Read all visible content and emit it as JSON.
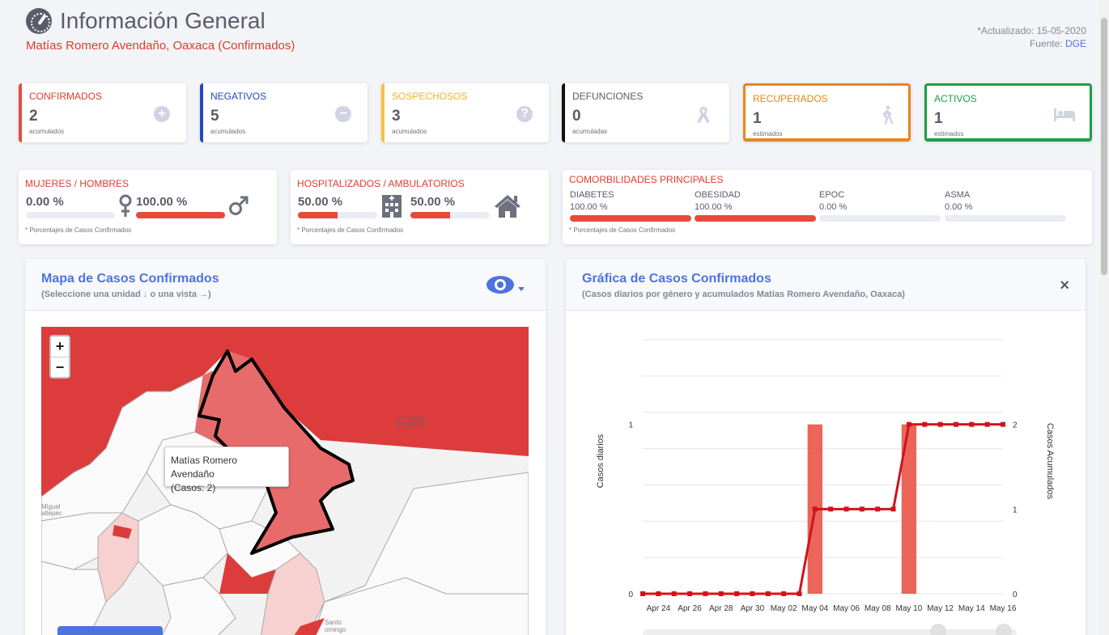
{
  "header": {
    "title": "Información General",
    "subtitle": "Matías Romero Avendaño, Oaxaca (Confirmados)",
    "updated": "*Actualizado: 15-05-2020",
    "source_label": "Fuente:",
    "source_link": "DGE"
  },
  "stats": [
    {
      "label": "CONFIRMADOS",
      "value": "2",
      "note": "acumulados",
      "color": "#e74a3b",
      "icon": "plus-circle-icon"
    },
    {
      "label": "NEGATIVOS",
      "value": "5",
      "note": "acumulados",
      "color": "#224abe",
      "icon": "minus-circle-icon"
    },
    {
      "label": "SOSPECHOSOS",
      "value": "3",
      "note": "acumulados",
      "color": "#f6c23e",
      "icon": "question-circle-icon"
    },
    {
      "label": "DEFUNCIONES",
      "value": "0",
      "note": "acumuladas",
      "color": "#111111",
      "icon": "ribbon-icon"
    },
    {
      "label": "RECUPERADOS",
      "value": "1",
      "note": "estimados",
      "color": "#e8851a",
      "icon": "walking-icon"
    },
    {
      "label": "ACTIVOS",
      "value": "1",
      "note": "estimados",
      "color": "#1cc88a",
      "icon": "bed-icon"
    }
  ],
  "gender": {
    "title": "MUJERES / HOMBRES",
    "women_pct": "0.00 %",
    "men_pct": "100.00 %",
    "women_value": 0,
    "men_value": 100,
    "footnote": "* Porcentajes  de Casos Confirmados"
  },
  "hospital": {
    "title": "HOSPITALIZADOS / AMBULATORIOS",
    "hosp_pct": "50.00 %",
    "amb_pct": "50.00 %",
    "hosp_value": 50,
    "amb_value": 50,
    "footnote": "* Porcentajes  de Casos Confirmados"
  },
  "comorbidities": {
    "title": "COMORBILIDADES PRINCIPALES",
    "items": [
      {
        "label": "DIABETES",
        "pct": "100.00 %",
        "value": 100
      },
      {
        "label": "OBESIDAD",
        "pct": "100.00 %",
        "value": 100
      },
      {
        "label": "EPOC",
        "pct": "0.00 %",
        "value": 0
      },
      {
        "label": "ASMA",
        "pct": "0.00 %",
        "value": 0
      }
    ],
    "footnote": "* Porcentajes  de Casos Confirmados"
  },
  "map": {
    "title": "Mapa de Casos Confirmados",
    "subtitle": "(Seleccione una unidad ↓ o una vista →)",
    "tooltip_name": "Matías Romero Avendaño",
    "tooltip_cases": "(Casos: 2)",
    "zoom_in": "+",
    "zoom_out": "−",
    "place_labels": [
      "La Laguna",
      "(Poblado 6)",
      "Miguel",
      "altepec",
      "Santo",
      "omingo"
    ]
  },
  "chart": {
    "title": "Gráfica de Casos Confirmados",
    "subtitle": "(Casos diarios por género y acumulados Matías Romero Avendaño, Oaxaca)",
    "close": "×"
  },
  "chart_data": {
    "type": "bar",
    "categories": [
      "Apr 23",
      "Apr 24",
      "Apr 25",
      "Apr 26",
      "Apr 27",
      "Apr 28",
      "Apr 29",
      "Apr 30",
      "May 01",
      "May 02",
      "May 03",
      "May 04",
      "May 05",
      "May 06",
      "May 07",
      "May 08",
      "May 09",
      "May 10",
      "May 11",
      "May 12",
      "May 13",
      "May 14",
      "May 15",
      "May 16"
    ],
    "x_tick_labels": [
      "Apr 24",
      "Apr 26",
      "Apr 28",
      "Apr 30",
      "May 02",
      "May 04",
      "May 06",
      "May 08",
      "May 10",
      "May 12",
      "May 14",
      "May 16"
    ],
    "series": [
      {
        "type": "bar",
        "axis": "left",
        "values": [
          0,
          0,
          0,
          0,
          0,
          0,
          0,
          0,
          0,
          0,
          0,
          1,
          0,
          0,
          0,
          0,
          0,
          1,
          0,
          0,
          0,
          0,
          0,
          0
        ]
      },
      {
        "type": "line",
        "axis": "right",
        "values": [
          0,
          0,
          0,
          0,
          0,
          0,
          0,
          0,
          0,
          0,
          0,
          1,
          1,
          1,
          1,
          1,
          1,
          2,
          2,
          2,
          2,
          2,
          2,
          2
        ]
      }
    ],
    "ylabel": "Casos diarios",
    "ylabel_right": "Casos Acumulados",
    "ylim": [
      0,
      1.5
    ],
    "ylim_right": [
      0,
      3
    ],
    "left_ticks": [
      "0",
      "1"
    ],
    "right_ticks": [
      "0",
      "1",
      "2"
    ],
    "colors": {
      "bar": "#e74a3b",
      "line": "#d0141e"
    }
  }
}
